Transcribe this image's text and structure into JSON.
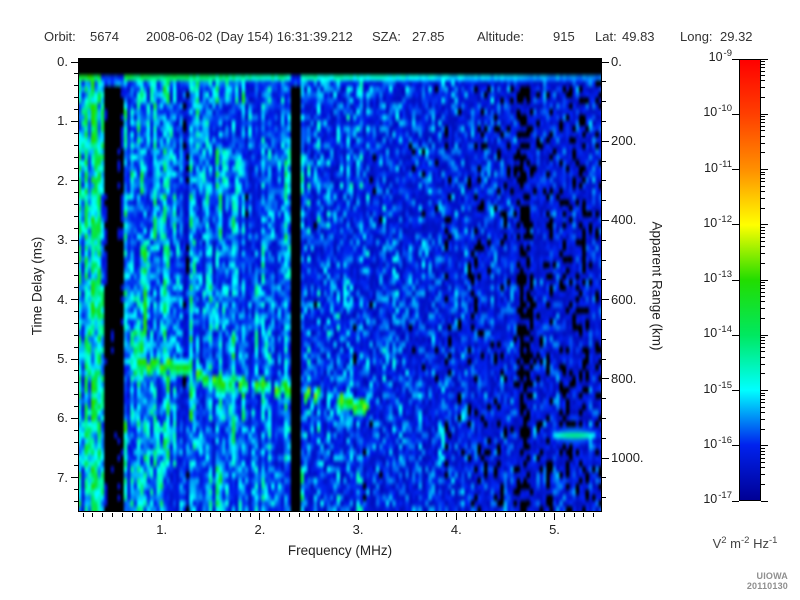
{
  "header": {
    "orbit_label": "Orbit:",
    "orbit_value": "5674",
    "datetime": "2008-06-02 (Day 154) 16:31:39.212",
    "sza_label": "SZA:",
    "sza_value": "27.85",
    "altitude_label": "Altitude:",
    "altitude_value": "915",
    "lat_label": "Lat:",
    "lat_value": "49.83",
    "long_label": "Long:",
    "long_value": "29.32"
  },
  "credit": "UIOWA 20110130",
  "colorbar": {
    "tick_labels": [
      {
        "base": "10",
        "exp": "-9"
      },
      {
        "base": "10",
        "exp": "-10"
      },
      {
        "base": "10",
        "exp": "-11"
      },
      {
        "base": "10",
        "exp": "-12"
      },
      {
        "base": "10",
        "exp": "-13"
      },
      {
        "base": "10",
        "exp": "-14"
      },
      {
        "base": "10",
        "exp": "-15"
      },
      {
        "base": "10",
        "exp": "-16"
      },
      {
        "base": "10",
        "exp": "-17"
      }
    ],
    "units_parts": [
      {
        "t": "V"
      },
      {
        "t": "2",
        "sup": true
      },
      {
        "t": " m",
        "sup": false
      },
      {
        "t": "-2",
        "sup": true
      },
      {
        "t": " Hz",
        "sup": false
      },
      {
        "t": "-1",
        "sup": true
      }
    ]
  },
  "chart_data": {
    "type": "heatmap",
    "xlabel": "Frequency (MHz)",
    "ylabel": "Time Delay (ms)",
    "y2label": "Apparent Range (km)",
    "xlim": [
      0.1,
      5.5
    ],
    "ylim": [
      0,
      7.57
    ],
    "y_axis_inverted_downward": true,
    "y2lim": [
      0,
      1135
    ],
    "x_ticks": {
      "labels": [
        "1.",
        "2.",
        "3.",
        "4.",
        "5."
      ],
      "values": [
        1,
        2,
        3,
        4,
        5
      ],
      "minor_step": 0.1
    },
    "y_ticks": {
      "labels": [
        "0.",
        "1.",
        "2.",
        "3.",
        "4.",
        "5.",
        "6.",
        "7."
      ],
      "values": [
        0,
        1,
        2,
        3,
        4,
        5,
        6,
        7
      ],
      "minor_step": 0.2
    },
    "y2_ticks": {
      "labels": [
        "0.",
        "200.",
        "400.",
        "600.",
        "800.",
        "1000."
      ],
      "values": [
        0,
        200,
        400,
        600,
        800,
        1000
      ],
      "minor_step": 50
    },
    "z_scale": "log10",
    "z_tick_exponents": [
      -9,
      -10,
      -11,
      -12,
      -13,
      -14,
      -15,
      -16,
      -17
    ],
    "colormap_low_to_high": [
      "#000095",
      "#0022ee",
      "#00ffff",
      "#00e860",
      "#22dd00",
      "#ffff00",
      "#ff9000",
      "#ff4000",
      "#ff0000"
    ],
    "grid_cells": [
      160,
      80
    ],
    "noise": {
      "seed": 20110130,
      "base_intensity_left": 0.24,
      "intensity_falloff": 0.125,
      "falloff_start_mhz": 0.5,
      "black_threshold": 0.055,
      "vertical_streak_region_max_mhz": 2.45,
      "low_freq_boost_below_mhz": 0.34
    },
    "features": {
      "top_black_band_ms": 0.22,
      "transmit_pulse_ms": 0.27,
      "bright_vlines_mhz": [
        {
          "mhz": 0.17,
          "gain": 2.6
        },
        {
          "mhz": 0.225,
          "gain": 2.2
        },
        {
          "mhz": 0.345,
          "gain": 2.8
        },
        {
          "mhz": 0.405,
          "gain": 2.0
        },
        {
          "mhz": 0.75,
          "gain": 1.7
        },
        {
          "mhz": 1.355,
          "gain": 2.0
        }
      ],
      "dark_vbands_mhz": [
        {
          "range": [
            0.375,
            0.6
          ],
          "gain": 0.22
        },
        {
          "range": [
            2.33,
            2.43
          ],
          "gain": 0.1
        },
        {
          "range": [
            4.6,
            4.76
          ],
          "gain": 0.55
        }
      ],
      "echo_trace_f_mhz_t_ms": [
        [
          0.75,
          5.03
        ],
        [
          0.83,
          5.05
        ],
        [
          0.91,
          5.07
        ],
        [
          1.0,
          5.08
        ],
        [
          1.08,
          5.1
        ],
        [
          1.17,
          5.12
        ],
        [
          1.27,
          5.15
        ],
        [
          1.35,
          5.22
        ],
        [
          1.44,
          5.32
        ],
        [
          1.52,
          5.37
        ],
        [
          1.61,
          5.39
        ],
        [
          1.8,
          5.4
        ],
        [
          1.98,
          5.44
        ],
        [
          2.18,
          5.47
        ],
        [
          2.28,
          5.49
        ],
        [
          2.44,
          5.54
        ],
        [
          2.56,
          5.56
        ],
        [
          2.82,
          5.69
        ],
        [
          2.94,
          5.74
        ],
        [
          3.04,
          5.77
        ],
        [
          3.14,
          5.83
        ]
      ],
      "trace_gaps_mhz": [
        [
          2.33,
          2.45
        ],
        [
          2.6,
          2.78
        ]
      ],
      "horizontal_streak": {
        "mhz": [
          4.95,
          5.45
        ],
        "ms": 6.31
      }
    }
  }
}
